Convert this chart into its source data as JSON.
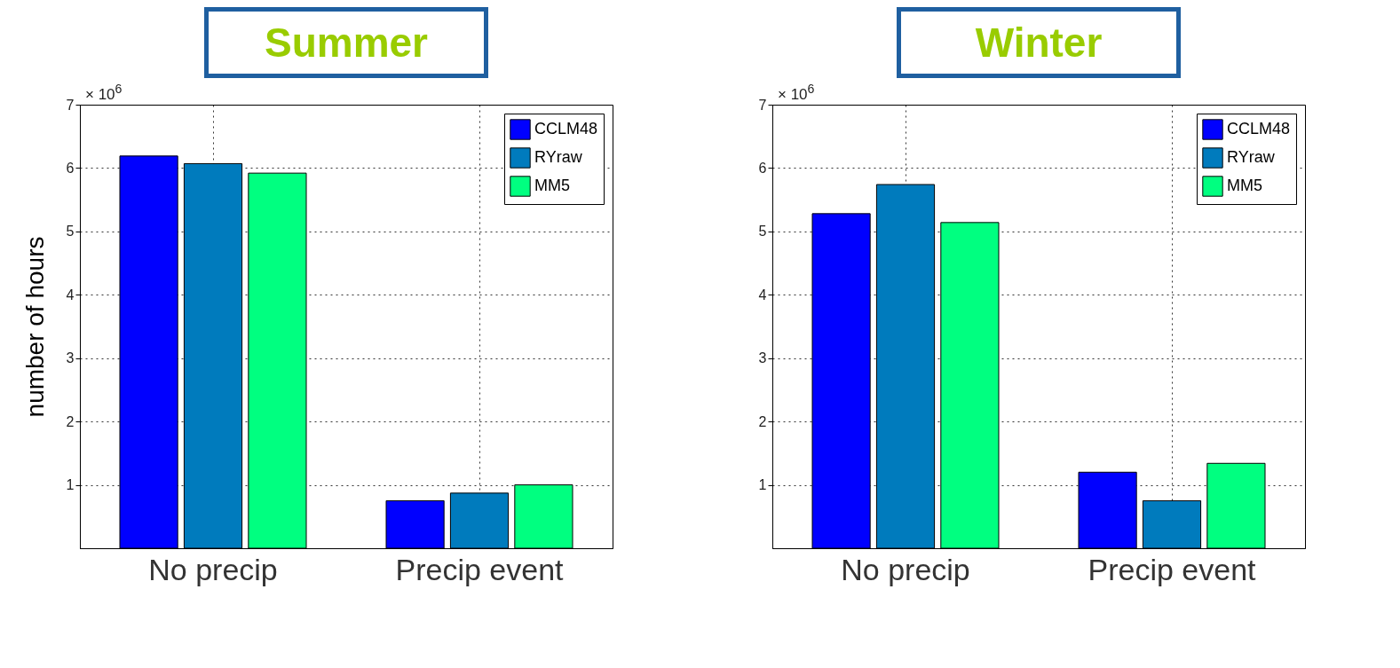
{
  "chart_data": [
    {
      "type": "bar",
      "title": "Summer",
      "ylabel": "number of hours",
      "annotations": [
        "× 10$^{6}$"
      ],
      "categories": [
        "No precip",
        "Precip event"
      ],
      "series": [
        {
          "name": "CCLM48",
          "color": "#0000ff",
          "values": [
            6.19,
            0.75
          ]
        },
        {
          "name": "RYraw",
          "color": "#007bbd",
          "values": [
            6.07,
            0.87
          ]
        },
        {
          "name": "MM5",
          "color": "#00ff80",
          "values": [
            5.92,
            1.0
          ]
        }
      ],
      "ylim": [
        0,
        7
      ],
      "yticks": [
        1,
        2,
        3,
        4,
        5,
        6,
        7
      ],
      "grid": true,
      "legend": "top right"
    },
    {
      "type": "bar",
      "title": "Winter",
      "annotations": [
        "× 10$^{6}$"
      ],
      "categories": [
        "No precip",
        "Precip event"
      ],
      "series": [
        {
          "name": "CCLM48",
          "color": "#0000ff",
          "values": [
            5.28,
            1.2
          ]
        },
        {
          "name": "RYraw",
          "color": "#007bbd",
          "values": [
            5.74,
            0.75
          ]
        },
        {
          "name": "MM5",
          "color": "#00ff80",
          "values": [
            5.14,
            1.34
          ]
        }
      ],
      "ylim": [
        0,
        7
      ],
      "yticks": [
        1,
        2,
        3,
        4,
        5,
        6,
        7
      ],
      "grid": true,
      "legend": "top right"
    }
  ]
}
